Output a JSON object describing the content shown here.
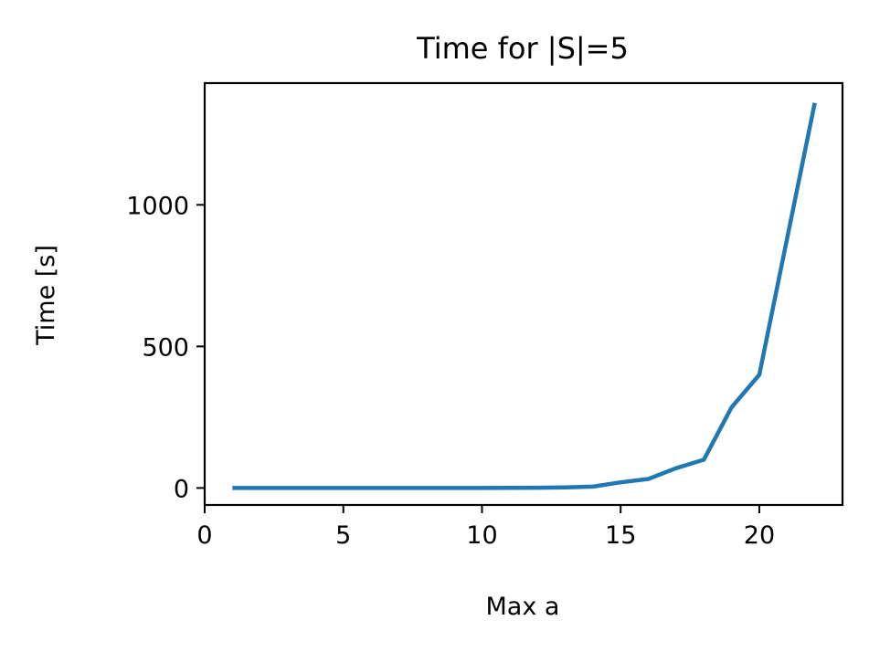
{
  "chart_data": {
    "type": "line",
    "title": "Time for |S|=5",
    "xlabel": "Max a",
    "ylabel": "Time [s]",
    "xlim": [
      0,
      23
    ],
    "ylim": [
      -60,
      1430
    ],
    "xticks": [
      0,
      5,
      10,
      15,
      20
    ],
    "yticks": [
      0,
      500,
      1000
    ],
    "grid": false,
    "line_color": "#1f77b4",
    "series": [
      {
        "x": [
          1,
          2,
          3,
          4,
          5,
          6,
          7,
          8,
          9,
          10,
          11,
          12,
          13,
          14,
          15,
          16,
          17,
          18,
          19,
          20,
          21,
          22
        ],
        "values": [
          0,
          0,
          0,
          0,
          0,
          0,
          0,
          0,
          0,
          0,
          0.5,
          1,
          2,
          5,
          20,
          32,
          70,
          100,
          285,
          400,
          880,
          1360
        ]
      }
    ]
  }
}
